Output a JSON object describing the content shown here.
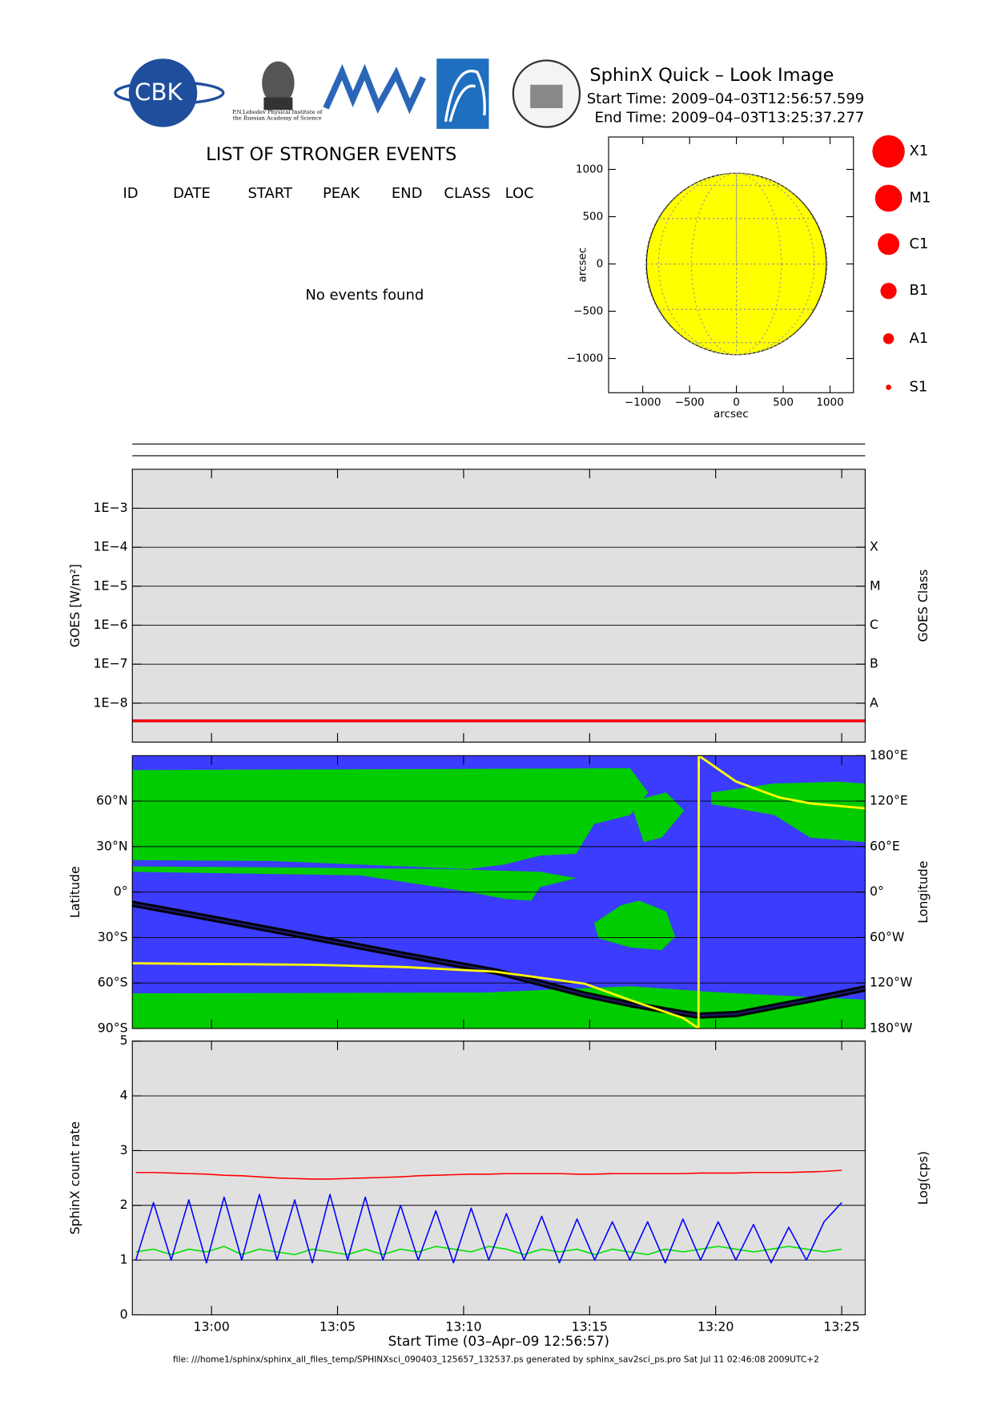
{
  "header": {
    "title": "SphinX Quick – Look Image",
    "start_time": "Start Time: 2009–04–03T12:56:57.599",
    "end_time": "End Time: 2009–04–03T13:25:37.277",
    "logo_cbk": "CBK",
    "logo_lebedev": "P.N.Lebedev Physical Institute of the Russian Academy of Science"
  },
  "events": {
    "title": "LIST OF STRONGER EVENTS",
    "columns": [
      "ID",
      "DATE",
      "START",
      "PEAK",
      "END",
      "CLASS",
      "LOC"
    ],
    "message": "No events found"
  },
  "flare_legend": {
    "labels": [
      "X1",
      "M1",
      "C1",
      "B1",
      "A1",
      "S1"
    ],
    "color": "#ff0000"
  },
  "footer": "file: ///home1/sphinx/sphinx_all_files_temp/SPHINXsci_090403_125657_132537.ps generated by sphinx_sav2sci_ps.pro Sat Jul 11 02:46:08 2009UTC+2",
  "chart_data": [
    {
      "type": "disk",
      "xlabel": "arcsec",
      "ylabel": "arcsec",
      "xlim": [
        -1365,
        1250
      ],
      "ylim": [
        -1362,
        1343
      ],
      "disk_radius": 960,
      "color": "#ffff00",
      "xticks": [
        {
          "value": -1000,
          "label": "−1000"
        },
        {
          "value": -500,
          "label": "−500"
        },
        0,
        500,
        1000
      ],
      "yticks": [
        {
          "value": -1000,
          "label": "−1000"
        },
        {
          "value": -500,
          "label": "−500"
        },
        0,
        500,
        1000
      ]
    },
    {
      "type": "line",
      "ylabel": "GOES [W/m²]",
      "y2label": "GOES Class",
      "log_scale": true,
      "grid": true,
      "xlim": [
        776.86,
        805.93
      ],
      "ylim": [
        1e-09,
        0.01
      ],
      "y2lim": [
        1e-09,
        0.01
      ],
      "yticks": [
        {
          "value": 0.001,
          "label": "1E−3"
        },
        {
          "value": 0.0001,
          "label": "1E−4"
        },
        {
          "value": 1e-05,
          "label": "1E−5"
        },
        {
          "value": 1e-06,
          "label": "1E−6"
        },
        {
          "value": 1e-07,
          "label": "1E−7"
        },
        {
          "value": 1e-08,
          "label": "1E−8"
        }
      ],
      "y2ticks": [
        {
          "value": 0.0001,
          "label": "X"
        },
        {
          "value": 1e-05,
          "label": "M"
        },
        {
          "value": 1e-06,
          "label": "C"
        },
        {
          "value": 1e-07,
          "label": "B"
        },
        {
          "value": 1e-08,
          "label": "A"
        }
      ],
      "x": [
        776.86,
        805.93
      ],
      "series": [
        {
          "color": "#0000ff",
          "values": [
            3.5e-09,
            3.5e-09
          ]
        },
        {
          "color": "#ff0000",
          "values": [
            3.5e-09,
            3.5e-09
          ]
        }
      ]
    },
    {
      "type": "line",
      "ylabel": "Latitude",
      "y2label": "Longitude",
      "grid": true,
      "xlim": [
        776.86,
        805.93
      ],
      "ylim": [
        -90,
        90
      ],
      "y2lim": [
        -180,
        180
      ],
      "yticks": [
        {
          "value": 60,
          "label": "60°N"
        },
        {
          "value": 30,
          "label": "30°N"
        },
        {
          "value": 0,
          "label": "0°"
        },
        {
          "value": -30,
          "label": "30°S"
        },
        {
          "value": -60,
          "label": "60°S"
        },
        {
          "value": -90,
          "label": "90°S"
        }
      ],
      "y2ticks": [
        {
          "value": 180,
          "label": "180°E"
        },
        {
          "value": 120,
          "label": "120°E"
        },
        {
          "value": 60,
          "label": "60°E"
        },
        {
          "value": 0,
          "label": "0°"
        },
        {
          "value": -60,
          "label": "60°W"
        },
        {
          "value": -120,
          "label": "120°W"
        },
        {
          "value": -180,
          "label": "180°W"
        }
      ],
      "x": [
        776.86,
        780.54,
        784.11,
        787.68,
        791.25,
        794.82,
        796.61,
        798.7,
        799.32,
        799.33,
        800.8,
        802.5,
        803.75,
        805.93
      ],
      "series": [
        {
          "color": "#000000",
          "values": [
            -7.7,
            -19,
            -30.3,
            -41.6,
            -52.3,
            -67.7,
            -74,
            -80,
            -81.5,
            -81.5,
            -80.5,
            -75,
            -71,
            -63.6
          ]
        },
        {
          "color": "#ffff00",
          "axis": "y2",
          "values": [
            -94,
            -95,
            -96,
            -99,
            -105,
            -121,
            -142.6,
            -166,
            -180,
            180,
            146,
            125,
            117,
            110.5
          ]
        }
      ]
    },
    {
      "type": "line",
      "ylabel": "SphinX count rate",
      "y2label": "Log(cps)",
      "xlabel": "Start Time (03–Apr–09 12:56:57)",
      "grid": true,
      "xlim": [
        776.86,
        805.93
      ],
      "ylim": [
        0,
        5
      ],
      "yticks": [
        0,
        1,
        2,
        3,
        4,
        5
      ],
      "xticks": [
        {
          "value": 780,
          "label": "13:00"
        },
        {
          "value": 785,
          "label": "13:05"
        },
        {
          "value": 790,
          "label": "13:10"
        },
        {
          "value": 795,
          "label": "13:15"
        },
        {
          "value": 800,
          "label": "13:20"
        },
        {
          "value": 805,
          "label": "13:25"
        }
      ],
      "x": [
        777,
        777.7,
        778.4,
        779.1,
        779.8,
        780.5,
        781.2,
        781.9,
        782.6,
        783.3,
        784,
        784.7,
        785.4,
        786.1,
        786.8,
        787.5,
        788.2,
        788.9,
        789.6,
        790.3,
        791,
        791.7,
        792.4,
        793.1,
        793.8,
        794.5,
        795.2,
        795.9,
        796.6,
        797.3,
        798,
        798.7,
        799.4,
        800.1,
        800.8,
        801.5,
        802.2,
        802.9,
        803.6,
        804.3,
        805
      ],
      "series": [
        {
          "color": "#ff0000",
          "values": [
            2.6,
            2.6,
            2.59,
            2.58,
            2.57,
            2.55,
            2.54,
            2.52,
            2.5,
            2.49,
            2.48,
            2.48,
            2.49,
            2.5,
            2.51,
            2.52,
            2.54,
            2.55,
            2.56,
            2.57,
            2.57,
            2.58,
            2.58,
            2.58,
            2.58,
            2.57,
            2.57,
            2.58,
            2.58,
            2.58,
            2.58,
            2.58,
            2.59,
            2.59,
            2.59,
            2.6,
            2.6,
            2.6,
            2.61,
            2.62,
            2.64
          ]
        },
        {
          "color": "#00e000",
          "values": [
            1.15,
            1.2,
            1.1,
            1.2,
            1.15,
            1.25,
            1.1,
            1.2,
            1.15,
            1.1,
            1.2,
            1.15,
            1.1,
            1.2,
            1.1,
            1.2,
            1.15,
            1.25,
            1.2,
            1.15,
            1.25,
            1.2,
            1.1,
            1.2,
            1.15,
            1.2,
            1.1,
            1.2,
            1.15,
            1.1,
            1.2,
            1.15,
            1.2,
            1.25,
            1.2,
            1.15,
            1.2,
            1.25,
            1.2,
            1.15,
            1.2
          ]
        },
        {
          "color": "#0000ff",
          "values": [
            1.0,
            2.05,
            1.0,
            2.1,
            0.95,
            2.15,
            1.0,
            2.2,
            1.0,
            2.1,
            0.95,
            2.2,
            1.0,
            2.15,
            1.0,
            2.0,
            1.0,
            1.9,
            0.95,
            1.95,
            1.0,
            1.85,
            1.0,
            1.8,
            0.95,
            1.75,
            1.0,
            1.7,
            1.0,
            1.7,
            0.95,
            1.75,
            1.0,
            1.7,
            1.0,
            1.65,
            0.95,
            1.6,
            1.0,
            1.7,
            2.05
          ]
        }
      ]
    }
  ]
}
